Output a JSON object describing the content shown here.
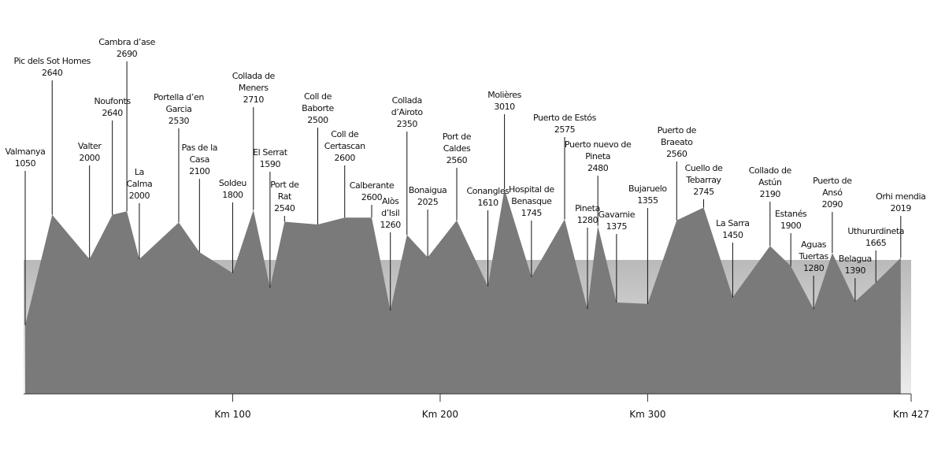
{
  "chart_data": {
    "type": "profile",
    "categories": [
      "Valmanya",
      "Pic dels Sot Homes",
      "Valter",
      "Noufonts",
      "Cambra d’ase",
      "La Calma",
      "Portella d’en Garcia",
      "Pas de la Casa",
      "Soldeu",
      "Collada de Meners",
      "El Serrat",
      "Port de Rat",
      "Coll de Baborte",
      "Coll de Certascan",
      "Calberante",
      "Alòs d’Isil",
      "Collada d’Airoto",
      "Bonaigua",
      "Port de Caldes",
      "Conangles",
      "Molières",
      "Hospital de Benasque",
      "Puerto de Estós",
      "Pineta",
      "Puerto nuevo de Pineta",
      "Gavarnie",
      "Bujaruelo",
      "Puerto de Braeato",
      "Cuello de Tebarray",
      "La Sarra",
      "Collado de Astún",
      "Estanés",
      "Aguas Tuertas",
      "Puerto de Ansó",
      "Belagua",
      "Uthururdineta",
      "Orhi mendia"
    ],
    "x": [
      0,
      13,
      31,
      42,
      49,
      55,
      74,
      84,
      100,
      110,
      118,
      125,
      141,
      154,
      167,
      176,
      184,
      194,
      208,
      223,
      231,
      244,
      260,
      271,
      276,
      285,
      300,
      314,
      327,
      341,
      359,
      369,
      380,
      389,
      400,
      410,
      422
    ],
    "values": [
      1050,
      2640,
      2000,
      2640,
      2690,
      2000,
      2530,
      2100,
      1800,
      2710,
      1590,
      2540,
      2500,
      2600,
      2600,
      1260,
      2350,
      2025,
      2560,
      1610,
      3010,
      1745,
      2575,
      1280,
      2480,
      1375,
      1355,
      2560,
      2745,
      1450,
      2190,
      1900,
      1280,
      2090,
      1390,
      1665,
      2019
    ],
    "xlim": [
      0,
      427
    ],
    "xticks": [
      {
        "value": 100,
        "label": "Km 100"
      },
      {
        "value": 200,
        "label": "Km 200"
      },
      {
        "value": 300,
        "label": "Km 300"
      },
      {
        "value": 427,
        "label": "Km 427"
      }
    ],
    "color": "#7a7a7a"
  }
}
